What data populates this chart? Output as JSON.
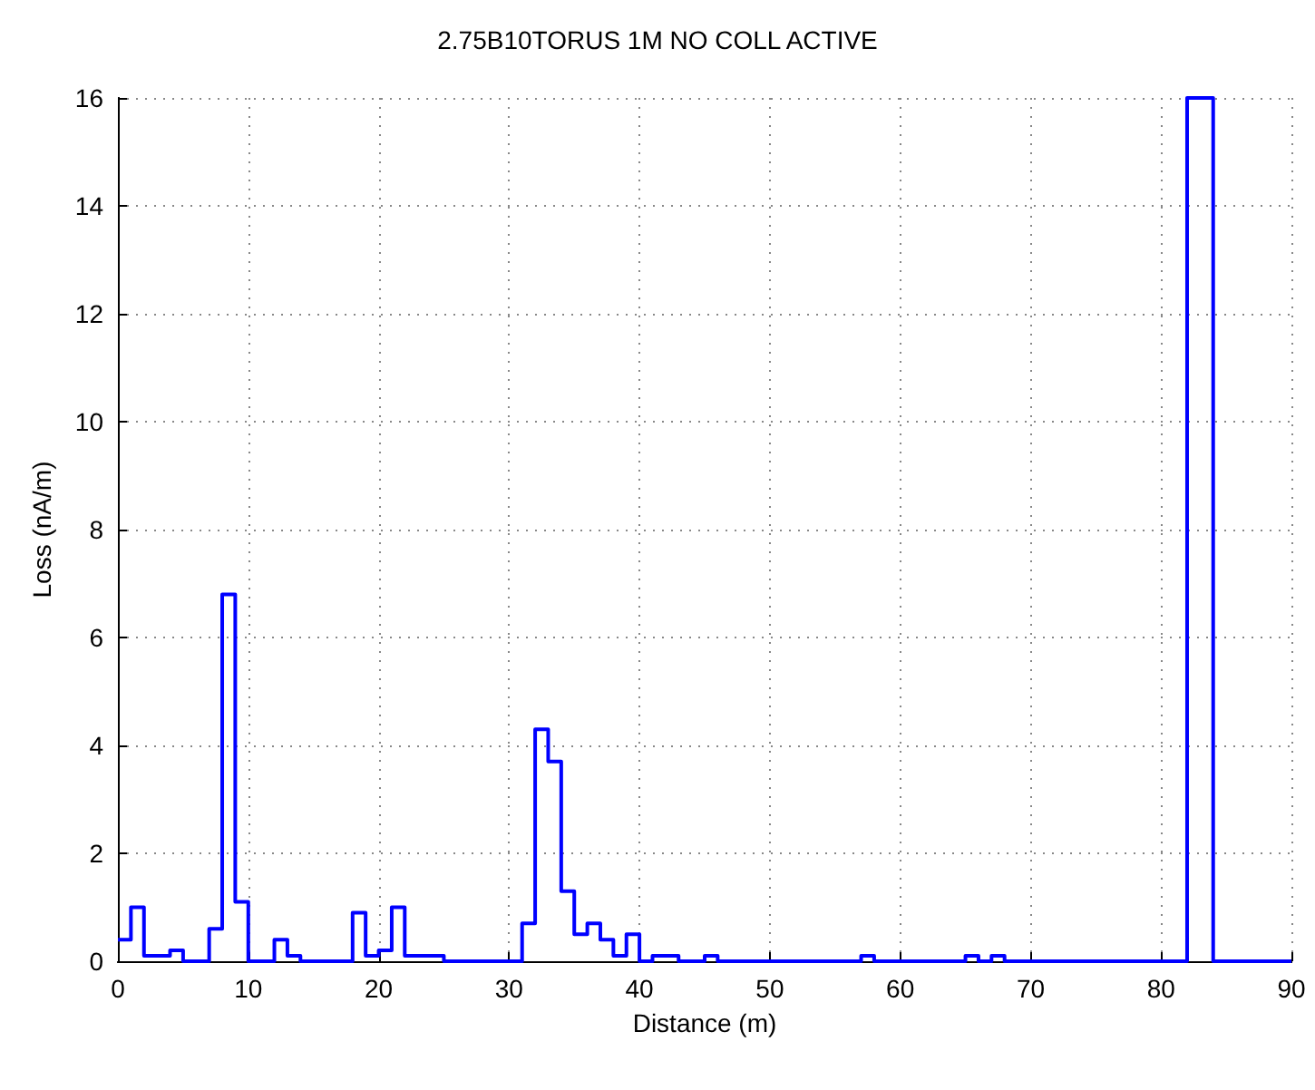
{
  "chart_data": {
    "type": "step",
    "title": "2.75B10TORUS 1M NO COLL ACTIVE",
    "xlabel": "Distance (m)",
    "ylabel": "Loss (nA/m)",
    "x": [
      0,
      1,
      2,
      4,
      5,
      7,
      8,
      9,
      10,
      12,
      13,
      14,
      18,
      19,
      20,
      21,
      22,
      25,
      31,
      32,
      33,
      34,
      35,
      36,
      37,
      38,
      39,
      40,
      41,
      43,
      45,
      46,
      57,
      58,
      65,
      66,
      67,
      68,
      82,
      84,
      90
    ],
    "series": [
      {
        "color": "#0000ff",
        "values": [
          0.4,
          1.0,
          0.1,
          0.2,
          0,
          0.6,
          6.8,
          1.1,
          0,
          0.4,
          0.1,
          0,
          0.9,
          0.1,
          0.2,
          1.0,
          0.1,
          0,
          0.7,
          4.3,
          3.7,
          1.3,
          0.5,
          0.7,
          0.4,
          0.1,
          0.5,
          0,
          0.1,
          0,
          0.1,
          0,
          0.1,
          0,
          0.1,
          0,
          0.1,
          0,
          16,
          0,
          0
        ]
      }
    ],
    "xlim": [
      0,
      90
    ],
    "xticks": [
      0,
      10,
      20,
      30,
      40,
      50,
      60,
      70,
      80,
      90
    ],
    "ylim": [
      0,
      16
    ],
    "yticks": [
      0,
      2,
      4,
      6,
      8,
      10,
      12,
      14,
      16
    ],
    "grid": true,
    "marker": "none",
    "line_style": "solid"
  }
}
